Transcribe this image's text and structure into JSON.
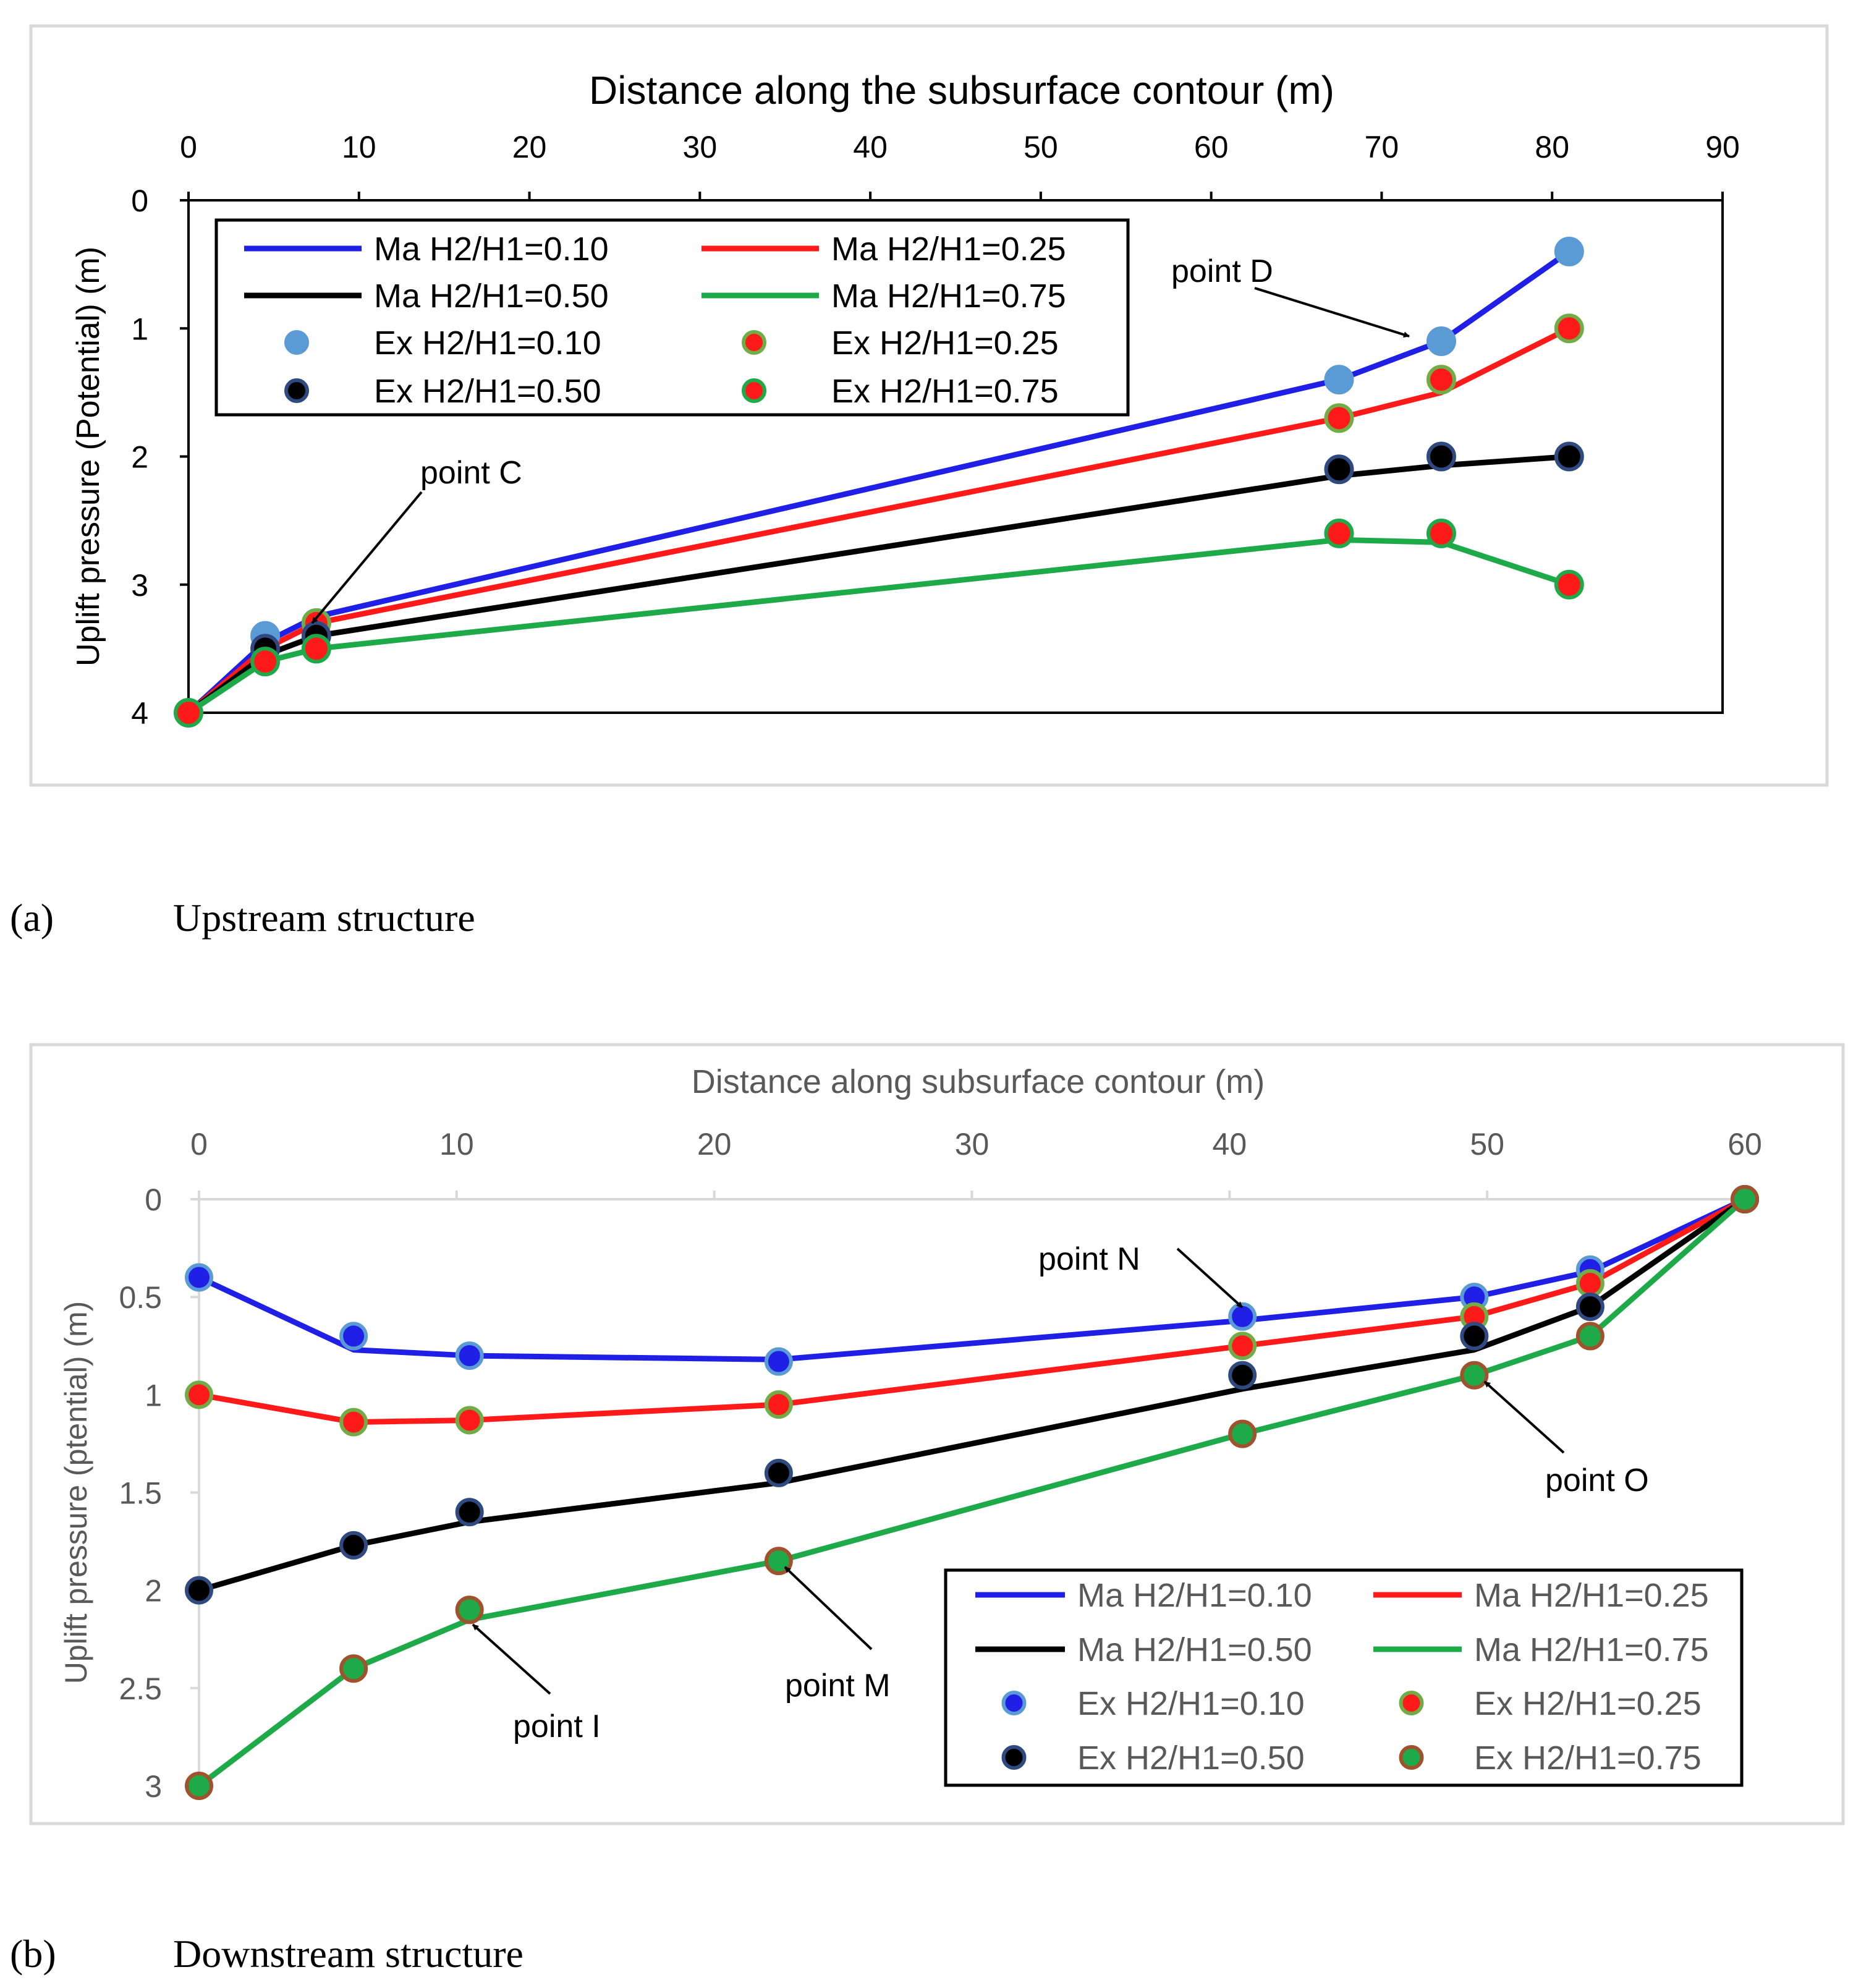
{
  "chart_data": [
    {
      "id": "upstream",
      "type": "line",
      "title": "Distance along the subsurface contour (m)",
      "xlabel": "Distance along the subsurface contour (m)",
      "ylabel": "Uplift pressure (Potential) (m)",
      "xlim": [
        0,
        90
      ],
      "ylim": [
        0,
        4
      ],
      "y_inverted": true,
      "x_axis_position": "top",
      "x_ticks": [
        0,
        10,
        20,
        30,
        40,
        50,
        60,
        70,
        80,
        90
      ],
      "y_ticks": [
        0,
        1,
        2,
        3,
        4
      ],
      "grid": false,
      "legend_position": "top-left",
      "series": [
        {
          "name": "Ma H2/H1=0.10",
          "kind": "line",
          "color": "#1f1fe6",
          "x": [
            0,
            4.5,
            7.5,
            67.5,
            73.5,
            81
          ],
          "y": [
            4,
            3.45,
            3.25,
            1.4,
            1.1,
            0.4
          ]
        },
        {
          "name": "Ma H2/H1=0.25",
          "kind": "line",
          "color": "#ff1a1a",
          "x": [
            0,
            4.5,
            7.5,
            67.5,
            73.5,
            81
          ],
          "y": [
            4,
            3.5,
            3.3,
            1.7,
            1.5,
            1.0
          ]
        },
        {
          "name": "Ma H2/H1=0.50",
          "kind": "line",
          "color": "#000000",
          "x": [
            0,
            4.5,
            7.5,
            67.5,
            73.5,
            81
          ],
          "y": [
            4,
            3.55,
            3.4,
            2.15,
            2.07,
            2.0
          ]
        },
        {
          "name": "Ma H2/H1=0.75",
          "kind": "line",
          "color": "#1faa4a",
          "x": [
            0,
            4.5,
            7.5,
            67.5,
            73.5,
            81
          ],
          "y": [
            4,
            3.6,
            3.5,
            2.65,
            2.67,
            3.0
          ]
        },
        {
          "name": "Ex H2/H1=0.10",
          "kind": "marker",
          "fill": "#5b9bd5",
          "stroke": "#5b9bd5",
          "x": [
            4.5,
            7.5,
            67.5,
            73.5,
            81
          ],
          "y": [
            3.4,
            3.3,
            1.4,
            1.1,
            0.4
          ]
        },
        {
          "name": "Ex H2/H1=0.25",
          "kind": "marker",
          "fill": "#ff1a1a",
          "stroke": "#70ad47",
          "x": [
            7.5,
            67.5,
            73.5,
            81
          ],
          "y": [
            3.3,
            1.7,
            1.4,
            1.0
          ]
        },
        {
          "name": "Ex H2/H1=0.50",
          "kind": "marker",
          "fill": "#000000",
          "stroke": "#2f4a80",
          "x": [
            4.5,
            7.5,
            67.5,
            73.5,
            81
          ],
          "y": [
            3.5,
            3.4,
            2.1,
            2.0,
            2.0
          ]
        },
        {
          "name": "Ex H2/H1=0.75",
          "kind": "marker",
          "fill": "#ff1a1a",
          "stroke": "#1faa4a",
          "x": [
            0,
            4.5,
            7.5,
            67.5,
            73.5,
            81
          ],
          "y": [
            4.0,
            3.6,
            3.5,
            2.6,
            2.6,
            3.0
          ]
        }
      ],
      "annotations": [
        {
          "text": "point C",
          "x": 7.5,
          "y": 3.3
        },
        {
          "text": "point D",
          "x": 73.5,
          "y": 1.1
        }
      ]
    },
    {
      "id": "downstream",
      "type": "line",
      "title": "Distance along subsurface contour (m)",
      "xlabel": "Distance along subsurface contour (m)",
      "ylabel": "Uplift pressure (ptential) (m)",
      "xlim": [
        0,
        60
      ],
      "ylim": [
        0,
        3
      ],
      "y_inverted": true,
      "x_axis_position": "top",
      "x_ticks": [
        0,
        10,
        20,
        30,
        40,
        50,
        60
      ],
      "y_ticks": [
        0,
        0.5,
        1,
        1.5,
        2,
        2.5,
        3
      ],
      "grid": false,
      "legend_position": "bottom-right",
      "series": [
        {
          "name": "Ma H2/H1=0.10",
          "kind": "line",
          "color": "#1f1fe6",
          "x": [
            0,
            6,
            10.5,
            22.5,
            40.5,
            49.5,
            54,
            60
          ],
          "y": [
            0.4,
            0.77,
            0.8,
            0.82,
            0.62,
            0.5,
            0.37,
            0
          ]
        },
        {
          "name": "Ma H2/H1=0.25",
          "kind": "line",
          "color": "#ff1a1a",
          "x": [
            0,
            6,
            10.5,
            22.5,
            40.5,
            49.5,
            54,
            60
          ],
          "y": [
            1.0,
            1.14,
            1.13,
            1.05,
            0.75,
            0.6,
            0.43,
            0
          ]
        },
        {
          "name": "Ma H2/H1=0.50",
          "kind": "line",
          "color": "#000000",
          "x": [
            0,
            6,
            10.5,
            22.5,
            40.5,
            49.5,
            54,
            60
          ],
          "y": [
            2.0,
            1.77,
            1.65,
            1.45,
            0.97,
            0.77,
            0.55,
            0
          ]
        },
        {
          "name": "Ma H2/H1=0.75",
          "kind": "line",
          "color": "#1faa4a",
          "x": [
            0,
            6,
            10.5,
            22.5,
            40.5,
            49.5,
            54,
            60
          ],
          "y": [
            3.0,
            2.4,
            2.15,
            1.85,
            1.2,
            0.9,
            0.7,
            0
          ]
        },
        {
          "name": "Ex H2/H1=0.10",
          "kind": "marker",
          "fill": "#1f1fe6",
          "stroke": "#5b9bd5",
          "x": [
            0,
            6,
            10.5,
            22.5,
            40.5,
            49.5,
            54,
            60
          ],
          "y": [
            0.4,
            0.7,
            0.8,
            0.83,
            0.6,
            0.5,
            0.36,
            0
          ]
        },
        {
          "name": "Ex H2/H1=0.25",
          "kind": "marker",
          "fill": "#ff1a1a",
          "stroke": "#70ad47",
          "x": [
            0,
            6,
            10.5,
            22.5,
            40.5,
            49.5,
            54,
            60
          ],
          "y": [
            1.0,
            1.14,
            1.13,
            1.05,
            0.75,
            0.6,
            0.43,
            0
          ]
        },
        {
          "name": "Ex H2/H1=0.50",
          "kind": "marker",
          "fill": "#000000",
          "stroke": "#2f4a80",
          "x": [
            0,
            6,
            10.5,
            22.5,
            40.5,
            49.5,
            54,
            60
          ],
          "y": [
            2.0,
            1.77,
            1.6,
            1.4,
            0.9,
            0.7,
            0.55,
            0
          ]
        },
        {
          "name": "Ex H2/H1=0.75",
          "kind": "marker",
          "fill": "#1faa4a",
          "stroke": "#a0522d",
          "x": [
            0,
            6,
            10.5,
            22.5,
            40.5,
            49.5,
            54,
            60
          ],
          "y": [
            3.0,
            2.4,
            2.1,
            1.85,
            1.2,
            0.9,
            0.7,
            0
          ]
        }
      ],
      "annotations": [
        {
          "text": "point N",
          "x": 40.5,
          "y": 0.6
        },
        {
          "text": "point O",
          "x": 49.5,
          "y": 0.9
        },
        {
          "text": "point M",
          "x": 22.5,
          "y": 1.85
        },
        {
          "text": "point I",
          "x": 10.5,
          "y": 2.1
        }
      ]
    }
  ],
  "captions": {
    "a": {
      "label": "(a)",
      "text": "Upstream structure"
    },
    "b": {
      "label": "(b)",
      "text": "Downstream structure"
    }
  }
}
